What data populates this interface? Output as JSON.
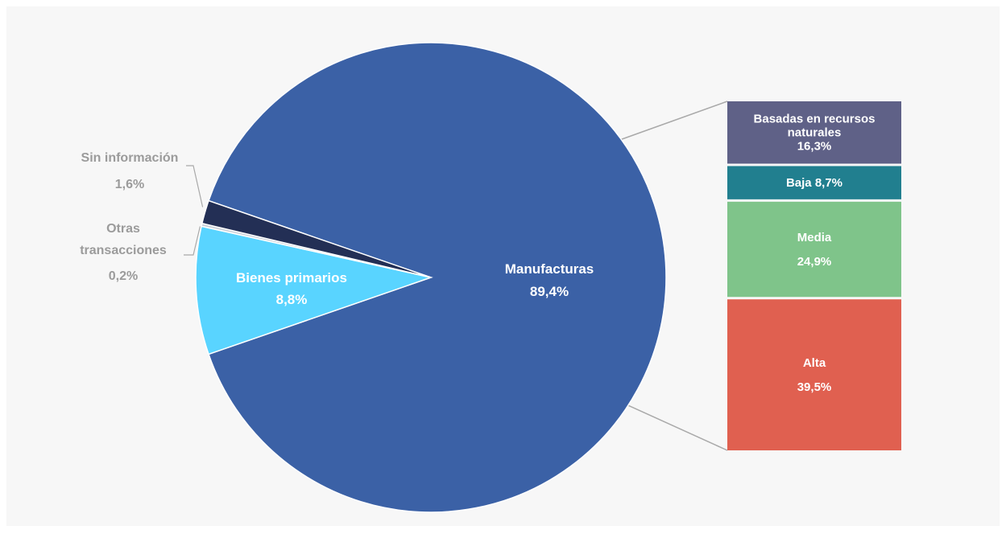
{
  "chart_data": {
    "type": "bar-of-pie",
    "pie": {
      "slices": [
        {
          "label": "Manufacturas",
          "value": 89.4,
          "value_label": "89,4%",
          "color": "#3b61a6"
        },
        {
          "label": "Bienes primarios",
          "value": 8.8,
          "value_label": "8,8%",
          "color": "#59d4ff"
        },
        {
          "label": "Otras transacciones",
          "label_lines": [
            "Otras",
            "transacciones"
          ],
          "value": 0.2,
          "value_label": "0,2%",
          "color": "#c9cfd8"
        },
        {
          "label": "Sin información",
          "value": 1.6,
          "value_label": "1,6%",
          "color": "#232f55"
        }
      ]
    },
    "breakdown_of": "Manufacturas",
    "bar": {
      "segments": [
        {
          "label": "Basadas en recursos naturales",
          "label_lines": [
            "Basadas en recursos",
            "naturales"
          ],
          "value": 16.3,
          "value_label": "16,3%",
          "color": "#5f6187"
        },
        {
          "label": "Baja",
          "value": 8.7,
          "value_label": "8,7%",
          "inline_text": "Baja 8,7%",
          "color": "#217f8f"
        },
        {
          "label": "Media",
          "value": 24.9,
          "value_label": "24,9%",
          "color": "#7fc48a"
        },
        {
          "label": "Alta",
          "value": 39.5,
          "value_label": "39,5%",
          "color": "#e06050"
        }
      ]
    }
  }
}
